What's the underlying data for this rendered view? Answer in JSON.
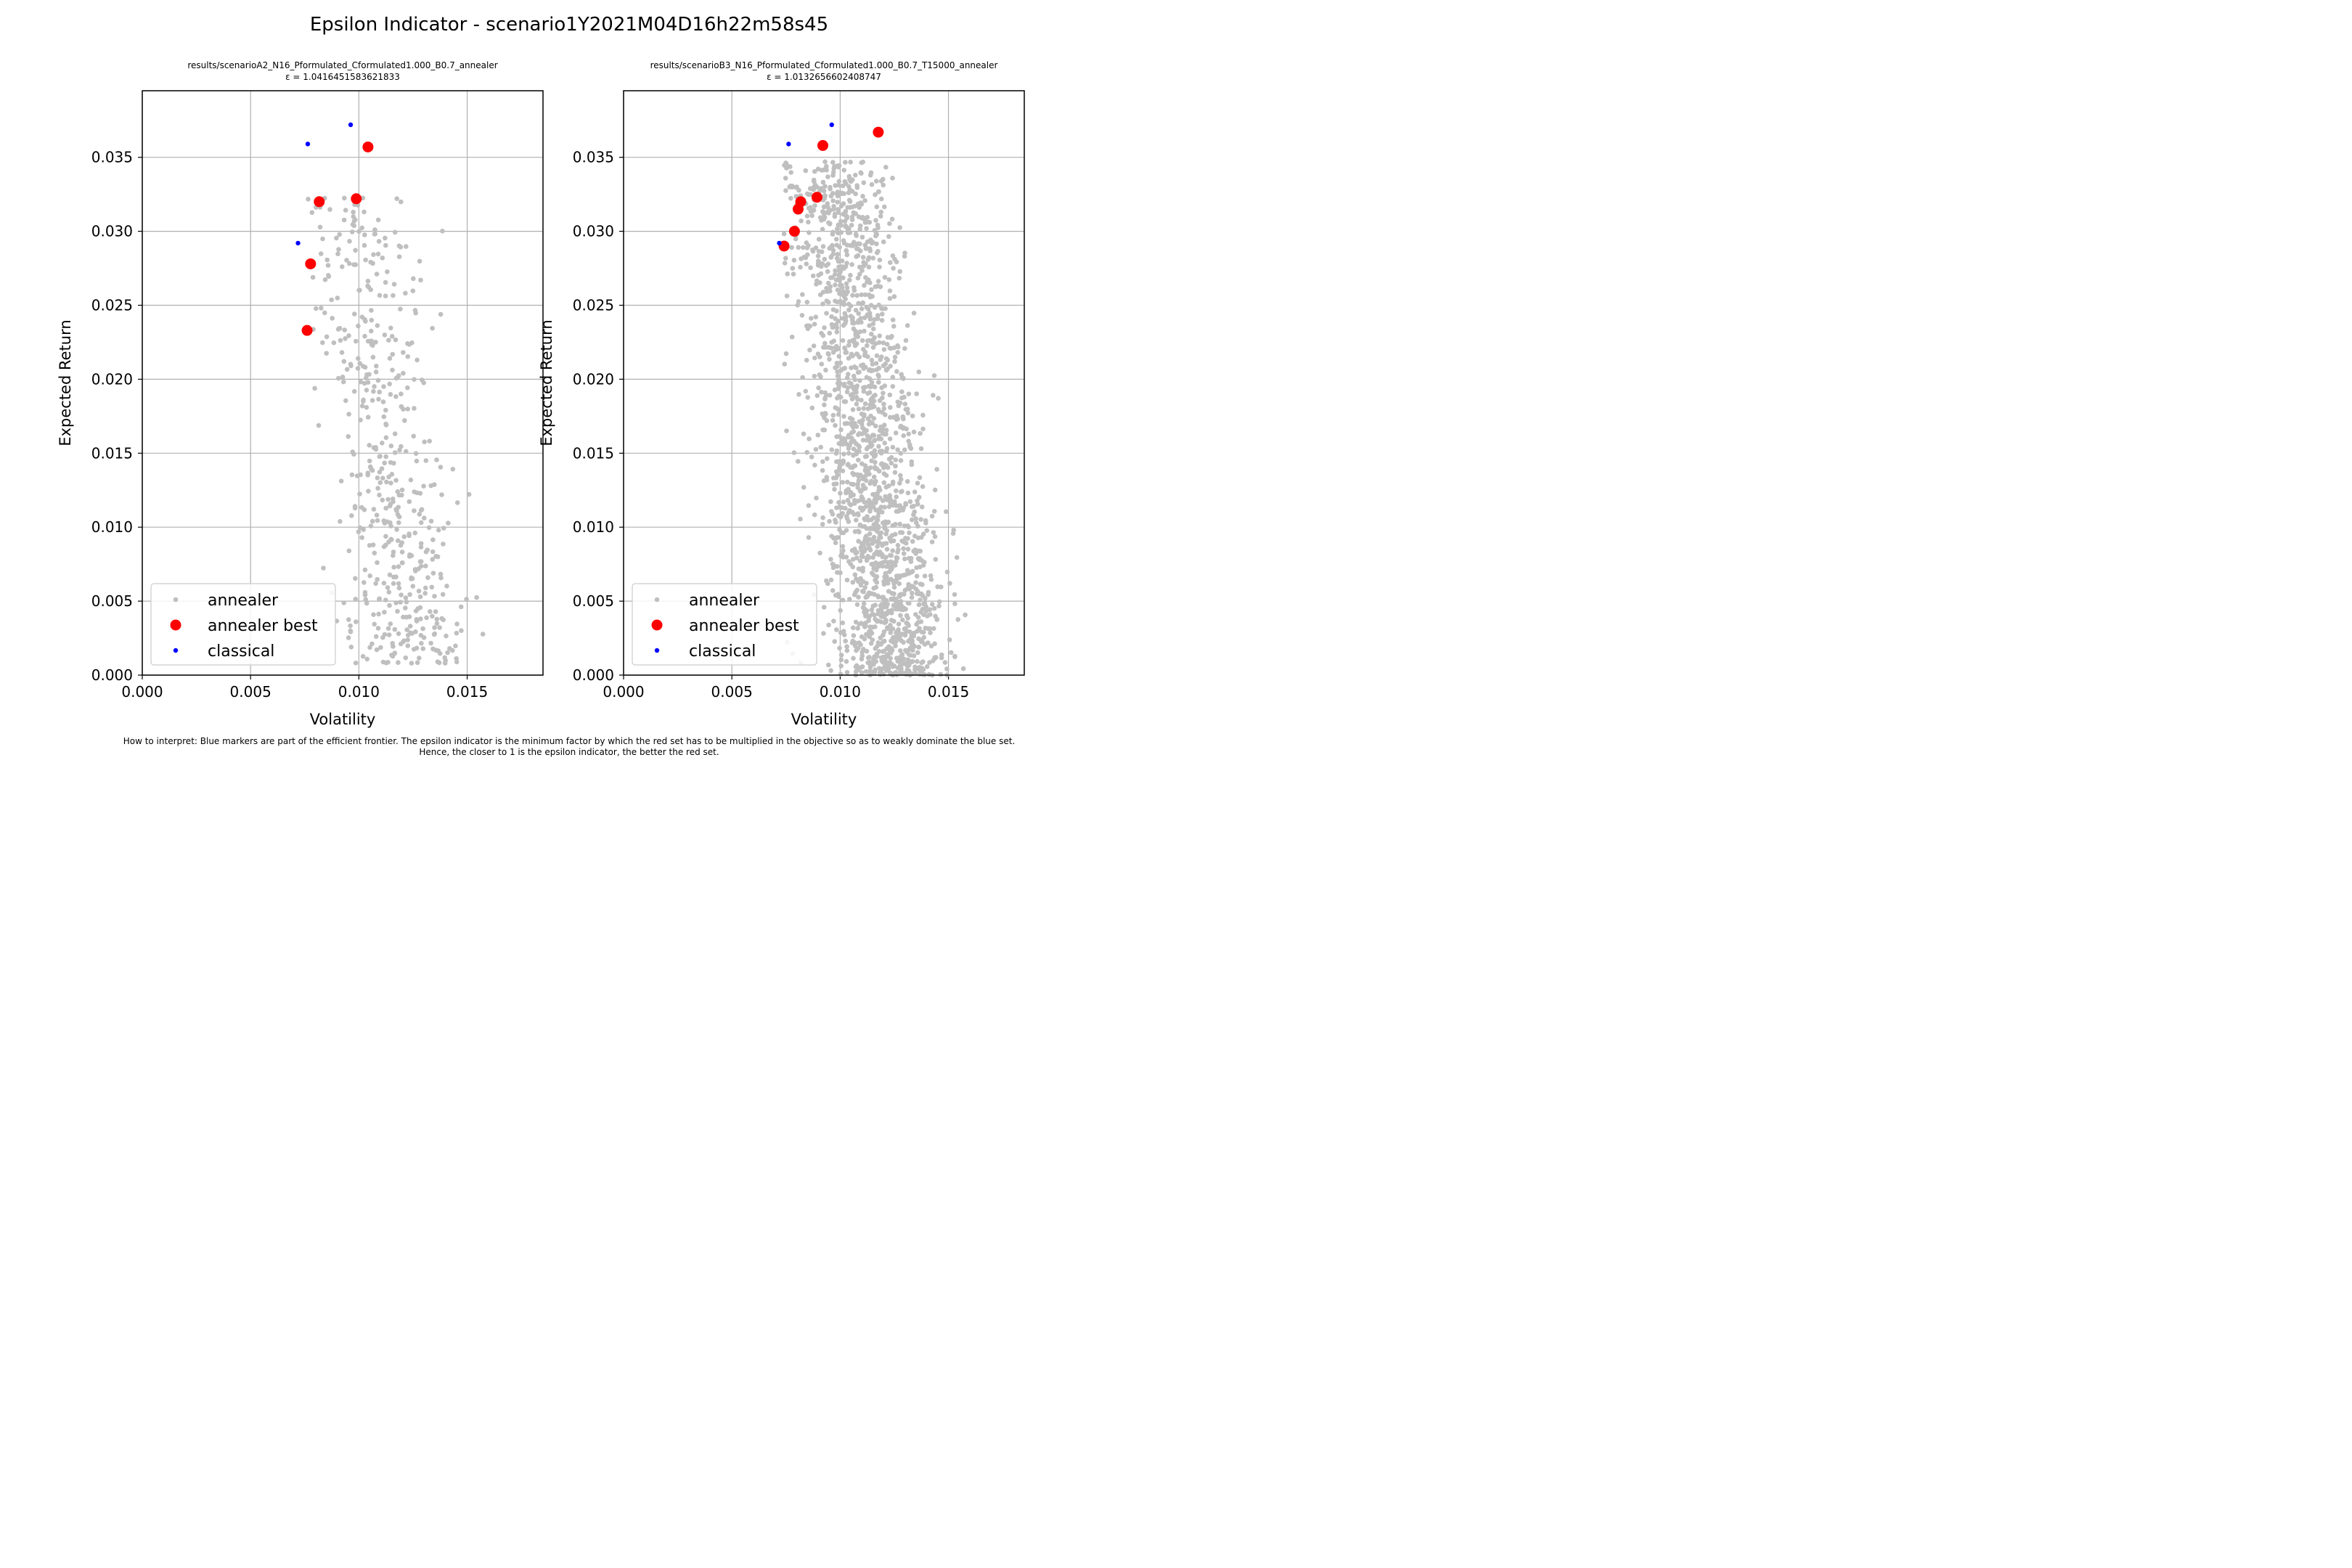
{
  "figure": {
    "suptitle": "Epsilon Indicator - scenario1Y2021M04D16h22m58s45",
    "footnote_line1": "How to interpret: Blue markers are part of the efficient frontier. The epsilon indicator is the minimum factor by which the red set has to be multiplied in the objective so as to weakly dominate the blue set.",
    "footnote_line2": "Hence, the closer to 1 is the epsilon indicator, the better the red set."
  },
  "colors": {
    "annealer": "#bfbfbf",
    "annealer_best": "#ff0000",
    "classical": "#0000ff",
    "grid": "#b0b0b0"
  },
  "chart_data": [
    {
      "type": "scatter",
      "title": "results/scenarioA2_N16_Pformulated_Cformulated1.000_B0.7_annealer",
      "subtitle": "ε = 1.0416451583621833",
      "xlabel": "Volatility",
      "ylabel": "Expected Return",
      "xlim": [
        0.0,
        0.0185
      ],
      "ylim": [
        0.0,
        0.0395
      ],
      "xticks": [
        "0.000",
        "0.005",
        "0.010",
        "0.015"
      ],
      "yticks": [
        "0.000",
        "0.005",
        "0.010",
        "0.015",
        "0.020",
        "0.025",
        "0.030",
        "0.035"
      ],
      "grid": true,
      "legend_position": "lower-left",
      "legend": [
        "annealer",
        "annealer best",
        "classical"
      ],
      "annealer_count": 520,
      "annealer_x_range": [
        0.0076,
        0.0164
      ],
      "annealer_y_range": [
        0.0008,
        0.0323
      ],
      "series": [
        {
          "name": "annealer best",
          "x": [
            0.01042,
            0.00817,
            0.00988,
            0.00777,
            0.00761
          ],
          "y": [
            0.0357,
            0.032,
            0.0322,
            0.0278,
            0.0233
          ]
        },
        {
          "name": "classical",
          "x": [
            0.00962,
            0.00764,
            0.00719
          ],
          "y": [
            0.0372,
            0.0359,
            0.0292
          ]
        }
      ]
    },
    {
      "type": "scatter",
      "title": "results/scenarioB3_N16_Pformulated_Cformulated1.000_B0.7_T15000_annealer",
      "subtitle": "ε = 1.0132656602408747",
      "xlabel": "Volatility",
      "ylabel": "Expected Return",
      "xlim": [
        0.0,
        0.0185
      ],
      "ylim": [
        0.0,
        0.0395
      ],
      "xticks": [
        "0.000",
        "0.005",
        "0.010",
        "0.015"
      ],
      "yticks": [
        "0.000",
        "0.005",
        "0.010",
        "0.015",
        "0.020",
        "0.025",
        "0.030",
        "0.035"
      ],
      "grid": true,
      "legend_position": "lower-left",
      "legend": [
        "annealer",
        "annealer best",
        "classical"
      ],
      "annealer_count": 1900,
      "annealer_x_range": [
        0.0073,
        0.0181
      ],
      "annealer_y_range": [
        0.0,
        0.0347
      ],
      "series": [
        {
          "name": "annealer best",
          "x": [
            0.01176,
            0.0092,
            0.00893,
            0.00818,
            0.00806,
            0.00789,
            0.00741
          ],
          "y": [
            0.0367,
            0.0358,
            0.0323,
            0.032,
            0.0315,
            0.03,
            0.029
          ]
        },
        {
          "name": "classical",
          "x": [
            0.00961,
            0.00762,
            0.00719
          ],
          "y": [
            0.0372,
            0.0359,
            0.0292
          ]
        }
      ]
    }
  ]
}
